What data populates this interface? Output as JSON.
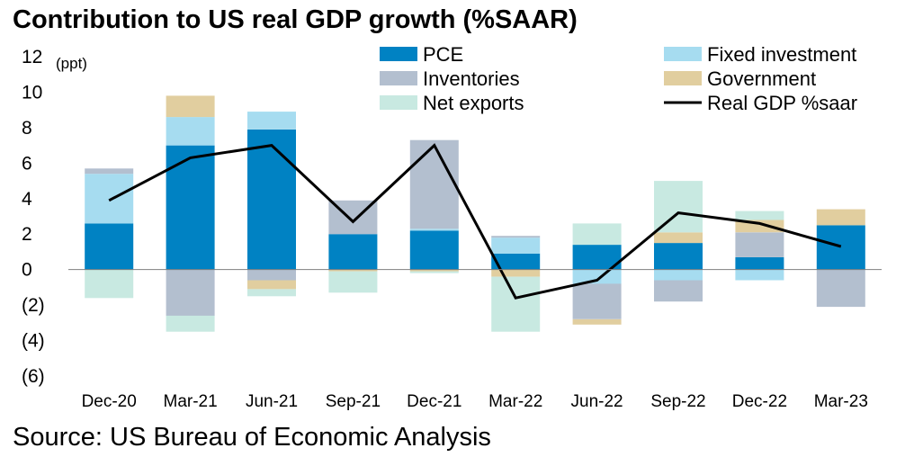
{
  "title": "Contribution to US real GDP growth (%SAAR)",
  "source": "Source: US Bureau of Economic Analysis",
  "chart_data": {
    "type": "bar",
    "stacked": true,
    "unit_label": "(ppt)",
    "categories": [
      "Dec-20",
      "Mar-21",
      "Jun-21",
      "Sep-21",
      "Dec-21",
      "Mar-22",
      "Jun-22",
      "Sep-22",
      "Dec-22",
      "Mar-23"
    ],
    "ylim": [
      -6,
      12
    ],
    "yticks": [
      12,
      10,
      8,
      6,
      4,
      2,
      0,
      -2,
      -4,
      -6
    ],
    "ytick_labels": [
      "12",
      "10",
      "8",
      "6",
      "4",
      "2",
      "0",
      "(2)",
      "(4)",
      "(6)"
    ],
    "grid": false,
    "legend_position": "top",
    "series": [
      {
        "name": "PCE",
        "key": "pce",
        "kind": "bar",
        "color": "#0082C3",
        "values": [
          2.6,
          7.0,
          7.9,
          2.0,
          2.2,
          0.9,
          1.4,
          1.5,
          0.7,
          2.5
        ]
      },
      {
        "name": "Fixed investment",
        "key": "fixed",
        "kind": "bar",
        "color": "#A6DCF0",
        "values": [
          2.8,
          1.6,
          1.0,
          0.0,
          0.1,
          0.9,
          -0.8,
          -0.6,
          -0.6,
          0.0
        ]
      },
      {
        "name": "Inventories",
        "key": "inventories",
        "kind": "bar",
        "color": "#B3BFCF",
        "values": [
          0.3,
          -2.6,
          -0.6,
          1.9,
          5.0,
          0.1,
          -2.0,
          -1.2,
          1.4,
          -2.1
        ]
      },
      {
        "name": "Government",
        "key": "government",
        "kind": "bar",
        "color": "#E1CE9F",
        "values": [
          0.0,
          1.2,
          -0.5,
          -0.1,
          -0.1,
          -0.4,
          -0.3,
          0.6,
          0.7,
          0.9
        ]
      },
      {
        "name": "Net exports",
        "key": "net_exports",
        "kind": "bar",
        "color": "#C8E9E1",
        "values": [
          -1.6,
          -0.9,
          -0.4,
          -1.2,
          -0.1,
          -3.1,
          1.2,
          2.9,
          0.5,
          0.0
        ]
      },
      {
        "name": "Real GDP %saar",
        "key": "gdp",
        "kind": "line",
        "color": "#000000",
        "values": [
          3.9,
          6.3,
          7.0,
          2.7,
          7.0,
          -1.6,
          -0.6,
          3.2,
          2.6,
          1.3
        ]
      }
    ],
    "legend_order": [
      "pce",
      "fixed",
      "inventories",
      "government",
      "net_exports",
      "gdp"
    ]
  }
}
